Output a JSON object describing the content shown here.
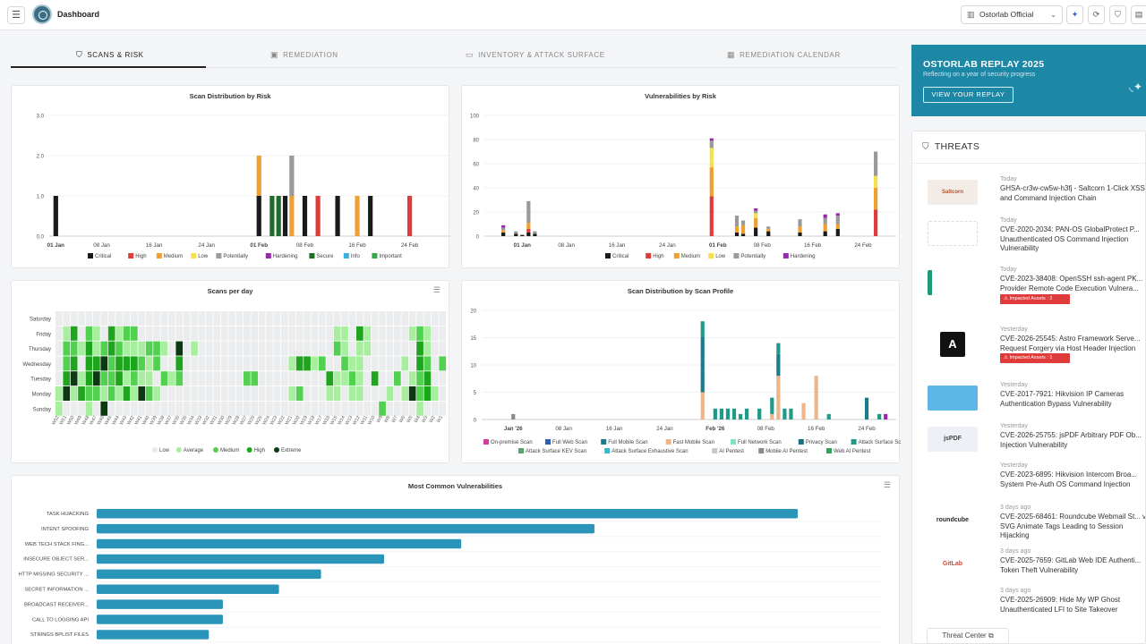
{
  "header": {
    "title": "Dashboard",
    "org": "Ostorlab Official",
    "icons": [
      "menu-icon",
      "sparkle-icon",
      "refresh-icon",
      "shield-icon",
      "id-card-icon"
    ]
  },
  "tabs": [
    {
      "label": "SCANS & RISK",
      "icon": "shield-icon",
      "active": true
    },
    {
      "label": "REMEDIATION",
      "icon": "id-card-icon",
      "active": false
    },
    {
      "label": "INVENTORY & ATTACK SURFACE",
      "icon": "window-icon",
      "active": false
    },
    {
      "label": "REMEDIATION CALENDAR",
      "icon": "calendar-icon",
      "active": false
    }
  ],
  "colors": {
    "Critical": "#1a1a1a",
    "High": "#e03b3b",
    "Medium": "#f0a030",
    "Low": "#f5e04d",
    "Potentially": "#9a9a9a",
    "Hardening": "#9b27b0",
    "Secure": "#1e6b2a",
    "Info": "#3bb0e0",
    "Important": "#3aa64b",
    "accent": "#1d87a6",
    "barBlue": "#2a95b8"
  },
  "charts": {
    "scan_risk": {
      "title": "Scan Distribution by Risk",
      "type": "bar",
      "yticks": [
        "3.0",
        "2.0",
        "1.0",
        "0.0"
      ],
      "ylim": [
        0,
        3
      ],
      "xticks": [
        "01 Jan",
        "08 Jan",
        "16 Jan",
        "24 Jan",
        "01 Feb",
        "08 Feb",
        "16 Feb",
        "24 Feb"
      ],
      "legend": [
        "Critical",
        "High",
        "Medium",
        "Low",
        "Potentially",
        "Hardening",
        "Secure",
        "Info",
        "Important"
      ],
      "bars": [
        {
          "day": 1,
          "Critical": 1
        },
        {
          "day": 32,
          "Critical": 1,
          "Medium": 1
        },
        {
          "day": 34,
          "Secure": 1
        },
        {
          "day": 35,
          "Secure": 1
        },
        {
          "day": 36,
          "Critical": 1
        },
        {
          "day": 37,
          "Medium": 1,
          "Potentially": 1
        },
        {
          "day": 39,
          "Critical": 1
        },
        {
          "day": 41,
          "High": 1
        },
        {
          "day": 44,
          "Critical": 1
        },
        {
          "day": 47,
          "Medium": 1
        },
        {
          "day": 49,
          "Critical": 1
        },
        {
          "day": 55,
          "High": 1
        }
      ]
    },
    "vuln_risk": {
      "title": "Vulnerabilities by Risk",
      "type": "bar",
      "yticks": [
        "100",
        "80",
        "60",
        "40",
        "20",
        "0"
      ],
      "ylim": [
        0,
        100
      ],
      "xticks": [
        "01 Jan",
        "08 Jan",
        "16 Jan",
        "24 Jan",
        "01 Feb",
        "08 Feb",
        "16 Feb",
        "24 Feb"
      ],
      "legend": [
        "Critical",
        "High",
        "Medium",
        "Low",
        "Potentially",
        "Hardening"
      ],
      "bars": [
        {
          "day": -2,
          "Critical": 3,
          "Medium": 2,
          "Potentially": 2,
          "Hardening": 2
        },
        {
          "day": 0,
          "Critical": 2,
          "Potentially": 2
        },
        {
          "day": 1,
          "Critical": 1
        },
        {
          "day": 2,
          "Critical": 3,
          "High": 3,
          "Medium": 5,
          "Potentially": 18
        },
        {
          "day": 3,
          "Critical": 2,
          "Potentially": 2
        },
        {
          "day": 31,
          "High": 33,
          "Medium": 24,
          "Low": 16,
          "Potentially": 6,
          "Hardening": 2
        },
        {
          "day": 35,
          "Critical": 3,
          "Medium": 5,
          "Potentially": 9
        },
        {
          "day": 36,
          "Critical": 2,
          "Medium": 7,
          "Potentially": 4
        },
        {
          "day": 38,
          "Critical": 7,
          "Medium": 8,
          "Low": 4,
          "Potentially": 2,
          "Hardening": 2
        },
        {
          "day": 40,
          "Critical": 4,
          "Medium": 2,
          "Potentially": 2
        },
        {
          "day": 45,
          "Critical": 3,
          "Medium": 5,
          "Potentially": 6
        },
        {
          "day": 49,
          "Critical": 4,
          "Medium": 6,
          "Potentially": 5,
          "Hardening": 3
        },
        {
          "day": 51,
          "Critical": 6,
          "Medium": 4,
          "Potentially": 7,
          "Hardening": 2
        },
        {
          "day": 57,
          "High": 22,
          "Medium": 18,
          "Low": 10,
          "Potentially": 20
        }
      ]
    },
    "scans_per_day": {
      "title": "Scans per day",
      "type": "heatmap",
      "rows": [
        "Saturday",
        "Friday",
        "Thursday",
        "Wednesday",
        "Tuesday",
        "Monday",
        "Sunday"
      ],
      "weeks": 52,
      "week_labels": [
        "W52",
        "W51",
        "W50",
        "W49",
        "W48",
        "W47",
        "W46",
        "W45",
        "W44",
        "W43",
        "W42",
        "W41",
        "W40",
        "W39",
        "W38",
        "W37",
        "W36",
        "W35",
        "W34",
        "W33",
        "W32",
        "W31",
        "W30",
        "W29",
        "W28",
        "W27",
        "W26",
        "W25",
        "W24",
        "W23",
        "W22",
        "W21",
        "W20",
        "W19",
        "W18",
        "W17",
        "W16",
        "W15",
        "W14",
        "W13",
        "W12",
        "W11",
        "W10",
        "W9",
        "W8",
        "W7",
        "W6",
        "W5",
        "W4",
        "W3",
        "W2",
        "W1"
      ],
      "legend": [
        "Low",
        "Average",
        "Medium",
        "High",
        "Extreme"
      ],
      "legend_colors": [
        "#eeeeee",
        "#a7ee9e",
        "#51d14f",
        "#1ea41d",
        "#0b3a10"
      ],
      "cells": [
        [
          0,
          0,
          0,
          0,
          0,
          0,
          0,
          0,
          0,
          0,
          0,
          0,
          0,
          0,
          0,
          0,
          0,
          0,
          0,
          0,
          0,
          0,
          0,
          0,
          0,
          0,
          0,
          0,
          0,
          0,
          0,
          0,
          0,
          0,
          0,
          0,
          0,
          0,
          0,
          0,
          0,
          0,
          0,
          0,
          0,
          0,
          0,
          0,
          0,
          0,
          0,
          0
        ],
        [
          0,
          1,
          3,
          0,
          2,
          1,
          0,
          3,
          1,
          2,
          2,
          0,
          0,
          0,
          0,
          0,
          0,
          0,
          0,
          0,
          0,
          0,
          0,
          0,
          0,
          0,
          0,
          0,
          0,
          0,
          0,
          0,
          0,
          0,
          0,
          0,
          0,
          1,
          1,
          0,
          3,
          1,
          0,
          0,
          0,
          0,
          0,
          1,
          2,
          1,
          0,
          0
        ],
        [
          0,
          2,
          2,
          1,
          3,
          1,
          2,
          3,
          2,
          1,
          1,
          1,
          2,
          2,
          1,
          0,
          4,
          0,
          1,
          0,
          0,
          0,
          0,
          0,
          0,
          0,
          0,
          0,
          0,
          0,
          0,
          0,
          0,
          0,
          0,
          0,
          0,
          2,
          1,
          0,
          1,
          1,
          0,
          0,
          0,
          0,
          0,
          0,
          3,
          1,
          0,
          0
        ],
        [
          0,
          2,
          3,
          0,
          3,
          3,
          4,
          2,
          3,
          3,
          3,
          2,
          1,
          2,
          0,
          0,
          3,
          0,
          0,
          0,
          0,
          0,
          0,
          0,
          0,
          0,
          0,
          0,
          0,
          0,
          0,
          1,
          3,
          3,
          1,
          2,
          0,
          0,
          2,
          1,
          1,
          0,
          0,
          0,
          0,
          0,
          1,
          0,
          3,
          2,
          0,
          2
        ],
        [
          0,
          3,
          4,
          1,
          3,
          4,
          2,
          2,
          3,
          1,
          2,
          1,
          1,
          0,
          2,
          1,
          2,
          0,
          0,
          0,
          0,
          0,
          0,
          0,
          0,
          2,
          2,
          0,
          0,
          0,
          0,
          0,
          0,
          0,
          0,
          0,
          3,
          1,
          1,
          2,
          1,
          0,
          3,
          0,
          0,
          2,
          0,
          1,
          2,
          3,
          0,
          0
        ],
        [
          1,
          4,
          1,
          3,
          2,
          2,
          1,
          2,
          1,
          3,
          1,
          4,
          2,
          1,
          0,
          0,
          0,
          0,
          0,
          0,
          0,
          0,
          0,
          0,
          0,
          0,
          0,
          0,
          0,
          0,
          0,
          1,
          2,
          0,
          0,
          0,
          1,
          1,
          0,
          1,
          1,
          0,
          0,
          0,
          1,
          0,
          1,
          4,
          2,
          3,
          1,
          0
        ],
        [
          1,
          0,
          0,
          0,
          1,
          0,
          4,
          0,
          0,
          0,
          0,
          0,
          0,
          0,
          0,
          0,
          0,
          0,
          0,
          0,
          0,
          0,
          0,
          0,
          0,
          0,
          0,
          0,
          0,
          0,
          0,
          0,
          0,
          0,
          0,
          0,
          0,
          0,
          0,
          0,
          0,
          0,
          0,
          2,
          0,
          0,
          0,
          0,
          1,
          0,
          0,
          0
        ]
      ]
    },
    "scan_profile": {
      "title": "Scan Distribution by Scan Profile",
      "type": "bar",
      "yticks": [
        "20",
        "15",
        "10",
        "5",
        "0"
      ],
      "ylim": [
        0,
        20
      ],
      "xticks": [
        "Jan '26",
        "08 Jan",
        "16 Jan",
        "24 Jan",
        "Feb '26",
        "08 Feb",
        "16 Feb",
        "24 Feb"
      ],
      "legend": [
        "On-premise Scan",
        "Full Web Scan",
        "Full Mobile Scan",
        "Fast Mobile Scan",
        "Full Network Scan",
        "Privacy Scan",
        "Attack Surface Scan",
        "Attack Surface KEV Scan",
        "Attack Surface Exhaustive Scan",
        "AI Pentest",
        "Mobile AI Pentest",
        "Web AI Pentest"
      ],
      "legend_colors": [
        "#d63aa0",
        "#2b5fb8",
        "#1b7d8c",
        "#f0b48a",
        "#7fe3c6",
        "#1a6f84",
        "#1d9a88",
        "#5ca36a",
        "#37b8c8",
        "#c8c8c8",
        "#8a8a8a",
        "#31a35c"
      ],
      "bars": [
        {
          "day": 0,
          "Mobile AI Pentest": 1
        },
        {
          "day": 30,
          "Fast Mobile Scan": 5,
          "Full Mobile Scan": 10,
          "Attack Surface Scan": 3
        },
        {
          "day": 32,
          "Attack Surface Scan": 2
        },
        {
          "day": 33,
          "Attack Surface Scan": 2
        },
        {
          "day": 34,
          "Attack Surface Scan": 2
        },
        {
          "day": 35,
          "Attack Surface Scan": 2
        },
        {
          "day": 36,
          "Attack Surface Scan": 1
        },
        {
          "day": 37,
          "Attack Surface Scan": 2
        },
        {
          "day": 39,
          "Attack Surface Scan": 2
        },
        {
          "day": 41,
          "Fast Mobile Scan": 1,
          "Attack Surface Scan": 3
        },
        {
          "day": 42,
          "Fast Mobile Scan": 8,
          "Full Mobile Scan": 4,
          "Attack Surface Scan": 2
        },
        {
          "day": 43,
          "Attack Surface Scan": 2
        },
        {
          "day": 44,
          "Attack Surface Scan": 2
        },
        {
          "day": 46,
          "Fast Mobile Scan": 3
        },
        {
          "day": 48,
          "Fast Mobile Scan": 8
        },
        {
          "day": 50,
          "Attack Surface Scan": 1
        },
        {
          "day": 56,
          "Full Mobile Scan": 4
        },
        {
          "day": 58,
          "Attack Surface Scan": 1
        },
        {
          "day": 59,
          "Hardening": 1
        }
      ]
    },
    "common_vulns": {
      "title": "Most Common Vulnerabilities",
      "type": "bar",
      "categories": [
        "TASK HIJACKING",
        "INTENT SPOOFING",
        "WEB TECH STACK FING...",
        "INSECURE OBJECT SER...",
        "HTTP MISSING SECURITY ...",
        "SECRET INFORMATION ...",
        "BROADCAST RECEIVER...",
        "CALL TO LOGGING API",
        "STRINGS BPLIST FILES"
      ],
      "values": [
        100,
        71,
        52,
        41,
        32,
        26,
        18,
        18,
        16
      ],
      "xlim": [
        0,
        112
      ]
    }
  },
  "replay": {
    "title": "OSTORLAB REPLAY 2025",
    "subtitle": "Reflecting on a year of security progress",
    "button": "VIEW YOUR REPLAY"
  },
  "threats": {
    "title": "THREATS",
    "items": [
      {
        "when": "Today",
        "name": "GHSA-cr3w-cw5w-h3fj - Saltcorn 1-Click XSS and Command Injection Chain",
        "thumb": "Saltcorn",
        "badge": ""
      },
      {
        "when": "Today",
        "name": "CVE-2020-2034: PAN-OS GlobalProtect P... Unauthenticated OS Command Injection Vulnerability",
        "thumb": "",
        "badge": ""
      },
      {
        "when": "Today",
        "name": "CVE-2023-38408: OpenSSH ssh-agent PK... Provider Remote Code Execution Vulnera...",
        "thumb": "",
        "badge": "Impacted Assets : 2"
      },
      {
        "when": "Yesterday",
        "name": "CVE-2026-25545: Astro Framework Serve... Request Forgery via Host Header Injection Error Pages",
        "thumb": "A",
        "badge": "Impacted Assets : 1"
      },
      {
        "when": "Yesterday",
        "name": "CVE-2017-7921: Hikvision IP Cameras Authentication Bypass Vulnerability",
        "thumb": "",
        "badge": ""
      },
      {
        "when": "Yesterday",
        "name": "CVE-2026-25755: jsPDF Arbitrary PDF Ob... Injection Vulnerability",
        "thumb": "jsPDF",
        "badge": ""
      },
      {
        "when": "Yesterday",
        "name": "CVE-2023-6895: Hikvision Intercom Broa... System Pre-Auth OS Command Injection",
        "thumb": "",
        "badge": ""
      },
      {
        "when": "3 days ago",
        "name": "CVE-2025-68461: Roundcube Webmail St... via SVG Animate Tags Leading to Session Hijacking",
        "thumb": "roundcube",
        "badge": ""
      },
      {
        "when": "3 days ago",
        "name": "CVE-2025-7659: GitLab Web IDE Authenti... Token Theft Vulnerability",
        "thumb": "GitLab",
        "badge": ""
      },
      {
        "when": "3 days ago",
        "name": "CVE-2025-26909: Hide My WP Ghost Unauthenticated LFI to Site Takeover",
        "thumb": "",
        "badge": ""
      }
    ],
    "center_button": "Threat Center"
  }
}
